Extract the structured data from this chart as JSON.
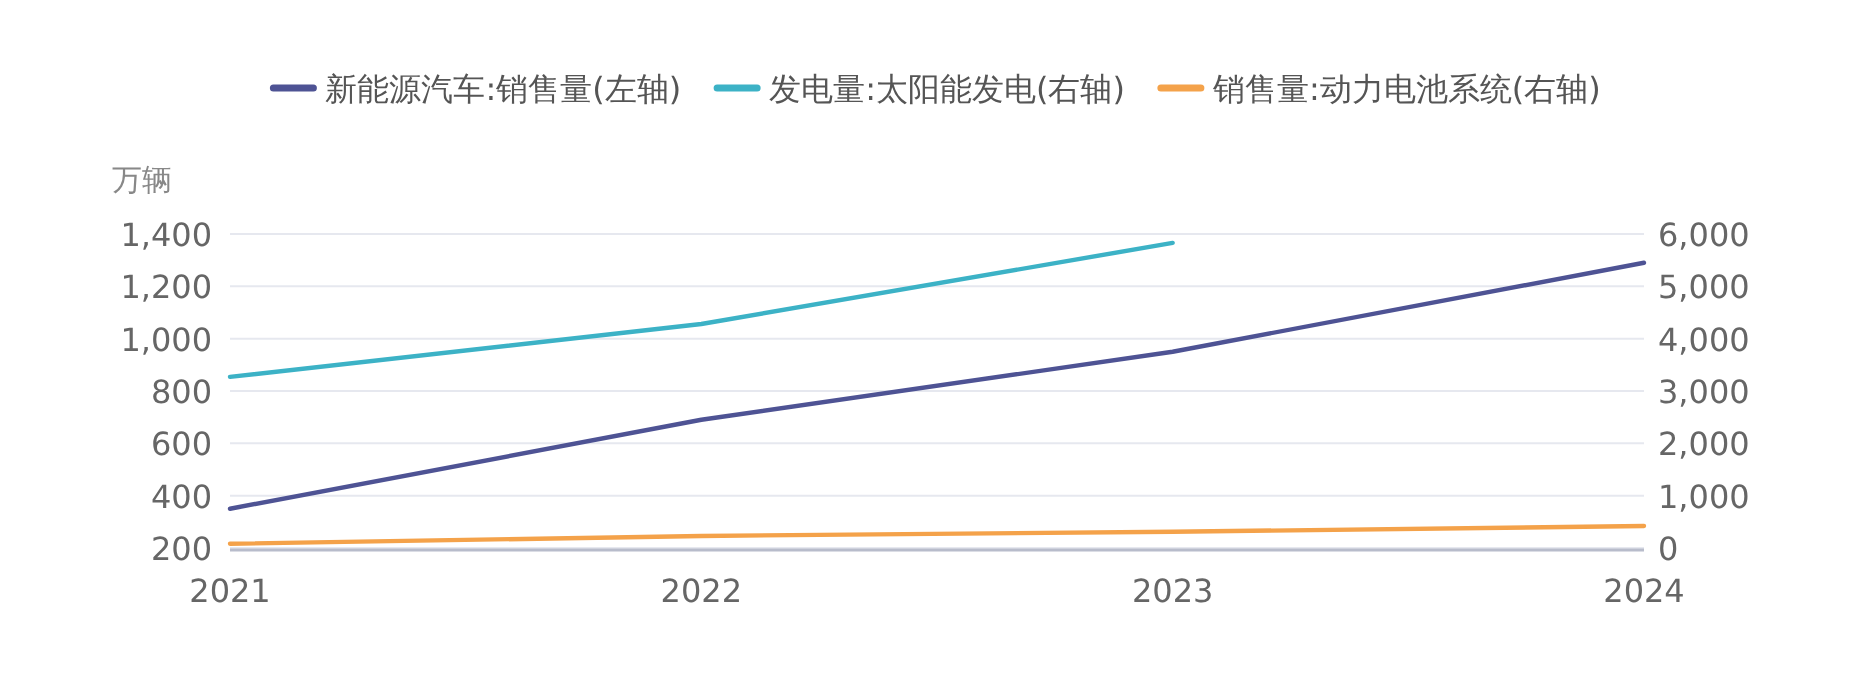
{
  "chart_data": {
    "type": "line",
    "ylabel": "万辆",
    "categories": [
      "2021",
      "2022",
      "2023",
      "2024"
    ],
    "series": [
      {
        "name": "新能源汽车:销售量(左轴)",
        "color": "#4e5394",
        "values": [
          350,
          690,
          950,
          1290
        ]
      },
      {
        "name": "发电量:太阳能发电(右轴)",
        "color": "#3cb2c6",
        "axis": "y2",
        "values": [
          3270,
          4280,
          5830,
          null
        ]
      },
      {
        "name": "销售量:动力电池系统(右轴)",
        "color": "#f4a24a",
        "axis": "y2",
        "values": [
          80,
          230,
          310,
          420
        ]
      }
    ],
    "ylim": [
      200,
      1400
    ],
    "yticks": [
      {
        "value": 200,
        "label": "200"
      },
      {
        "value": 400,
        "label": "400"
      },
      {
        "value": 600,
        "label": "600"
      },
      {
        "value": 800,
        "label": "800"
      },
      {
        "value": 1000,
        "label": "1,000"
      },
      {
        "value": 1200,
        "label": "1,200"
      },
      {
        "value": 1400,
        "label": "1,400"
      }
    ],
    "y2lim": [
      0,
      6000
    ],
    "y2ticks": [
      0,
      {
        "value": 1000,
        "label": "1,000"
      },
      {
        "value": 2000,
        "label": "2,000"
      },
      {
        "value": 3000,
        "label": "3,000"
      },
      {
        "value": 4000,
        "label": "4,000"
      },
      {
        "value": 5000,
        "label": "5,000"
      },
      {
        "value": 6000,
        "label": "6,000"
      }
    ],
    "grid": "y",
    "legend": "top",
    "marker": "none",
    "line_style": "solid"
  }
}
